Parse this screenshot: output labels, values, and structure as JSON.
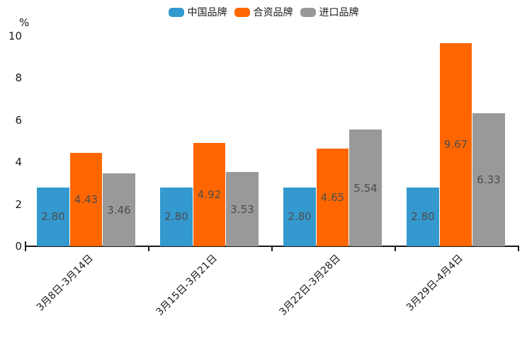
{
  "chart_data": {
    "type": "bar",
    "title": "",
    "ylabel": "%",
    "xlabel": "",
    "categories": [
      "3月8日-3月14日",
      "3月15日-3月21日",
      "3月22日-3月28日",
      "3月29日-4月4日"
    ],
    "series": [
      {
        "name": "中国品牌",
        "color": "#3499CE",
        "values": [
          2.8,
          2.8,
          2.8,
          2.8
        ]
      },
      {
        "name": "合资品牌",
        "color": "#FF6600",
        "values": [
          4.43,
          4.92,
          4.65,
          9.67
        ]
      },
      {
        "name": "进口品牌",
        "color": "#999999",
        "values": [
          3.46,
          3.53,
          5.54,
          6.33
        ]
      }
    ],
    "y_ticks": [
      0,
      2,
      4,
      6,
      8,
      10
    ],
    "ylim": [
      0,
      10
    ],
    "grid": false,
    "legend_position": "top",
    "value_labels": true,
    "value_label_decimals": 2,
    "x_label_rotation_deg": 45
  },
  "colors": {
    "background": "#ffffff",
    "axis": "#1a1a1a",
    "tick_text": "#1a1a1a",
    "value_label_text": "#4d4d4d"
  }
}
